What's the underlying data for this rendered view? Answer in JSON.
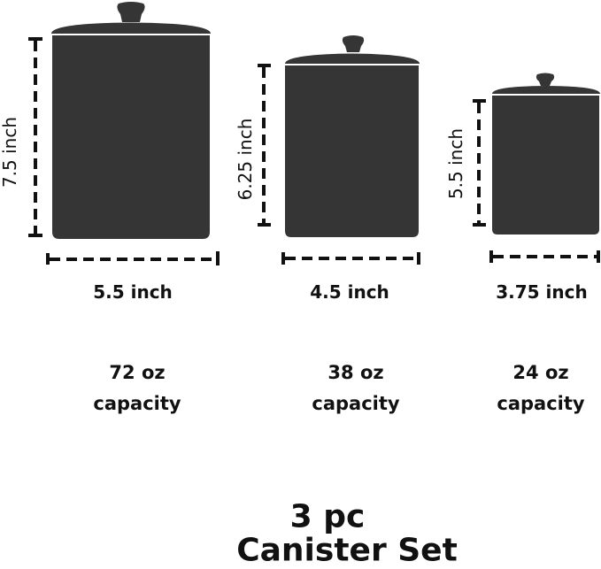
{
  "colors": {
    "canister": "#353535",
    "dimension_line": "#111111"
  },
  "canisters": [
    {
      "height": "7.5 inch",
      "width": "5.5 inch",
      "capacity_amount": "72 oz",
      "capacity_label": "capacity"
    },
    {
      "height": "6.25 inch",
      "width": "4.5 inch",
      "capacity_amount": "38 oz",
      "capacity_label": "capacity"
    },
    {
      "height": "5.5 inch",
      "width": "3.75 inch",
      "capacity_amount": "24 oz",
      "capacity_label": "capacity"
    }
  ],
  "title": {
    "line1": "3 pc",
    "line2": "Canister Set"
  }
}
